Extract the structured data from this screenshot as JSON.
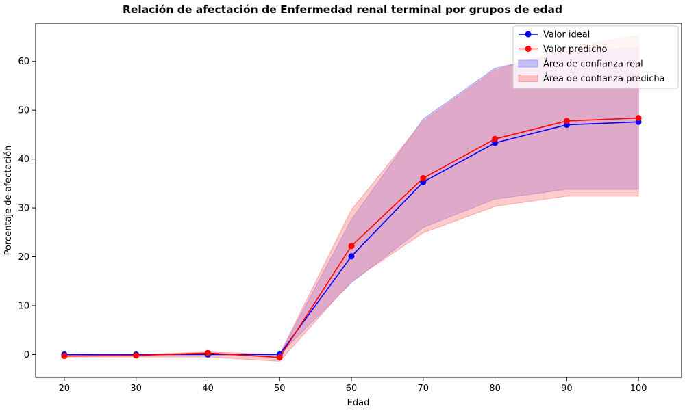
{
  "chart_data": {
    "type": "line",
    "title": "Relación de afectación de Enfermedad renal terminal por grupos de edad",
    "xlabel": "Edad",
    "ylabel": "Porcentaje de afectación",
    "x": [
      20,
      30,
      40,
      50,
      60,
      70,
      80,
      90,
      100
    ],
    "xlim": [
      16,
      106
    ],
    "ylim": [
      -4.7,
      67.8
    ],
    "xticks": [
      20,
      30,
      40,
      50,
      60,
      70,
      80,
      90,
      100
    ],
    "yticks": [
      0,
      10,
      20,
      30,
      40,
      50,
      60
    ],
    "grid": false,
    "legend_position": "top-right",
    "series": [
      {
        "name": "Valor ideal",
        "color": "#0000ff",
        "values": [
          0.0,
          0.0,
          0.0,
          0.0,
          20.1,
          35.3,
          43.3,
          47.0,
          47.6
        ]
      },
      {
        "name": "Valor predicho",
        "color": "#ff0000",
        "values": [
          -0.3,
          -0.2,
          0.3,
          -0.6,
          22.2,
          36.1,
          44.1,
          47.8,
          48.4
        ]
      }
    ],
    "bands": [
      {
        "name": "Área de confianza real",
        "color": "#7b7bff",
        "opacity": 0.4,
        "lower": [
          0.0,
          0.0,
          0.0,
          0.0,
          14.7,
          26.0,
          31.8,
          33.8,
          33.8
        ],
        "upper": [
          0.0,
          0.0,
          0.0,
          0.0,
          27.6,
          48.2,
          58.6,
          62.0,
          62.8
        ]
      },
      {
        "name": "Área de confianza predicha",
        "color": "#ff7b7b",
        "opacity": 0.4,
        "lower": [
          -0.5,
          -0.5,
          -0.5,
          -1.4,
          15.0,
          24.9,
          30.3,
          32.4,
          32.4
        ],
        "upper": [
          0.0,
          0.0,
          0.5,
          0.0,
          29.6,
          47.8,
          58.2,
          62.8,
          65.3
        ]
      }
    ]
  }
}
